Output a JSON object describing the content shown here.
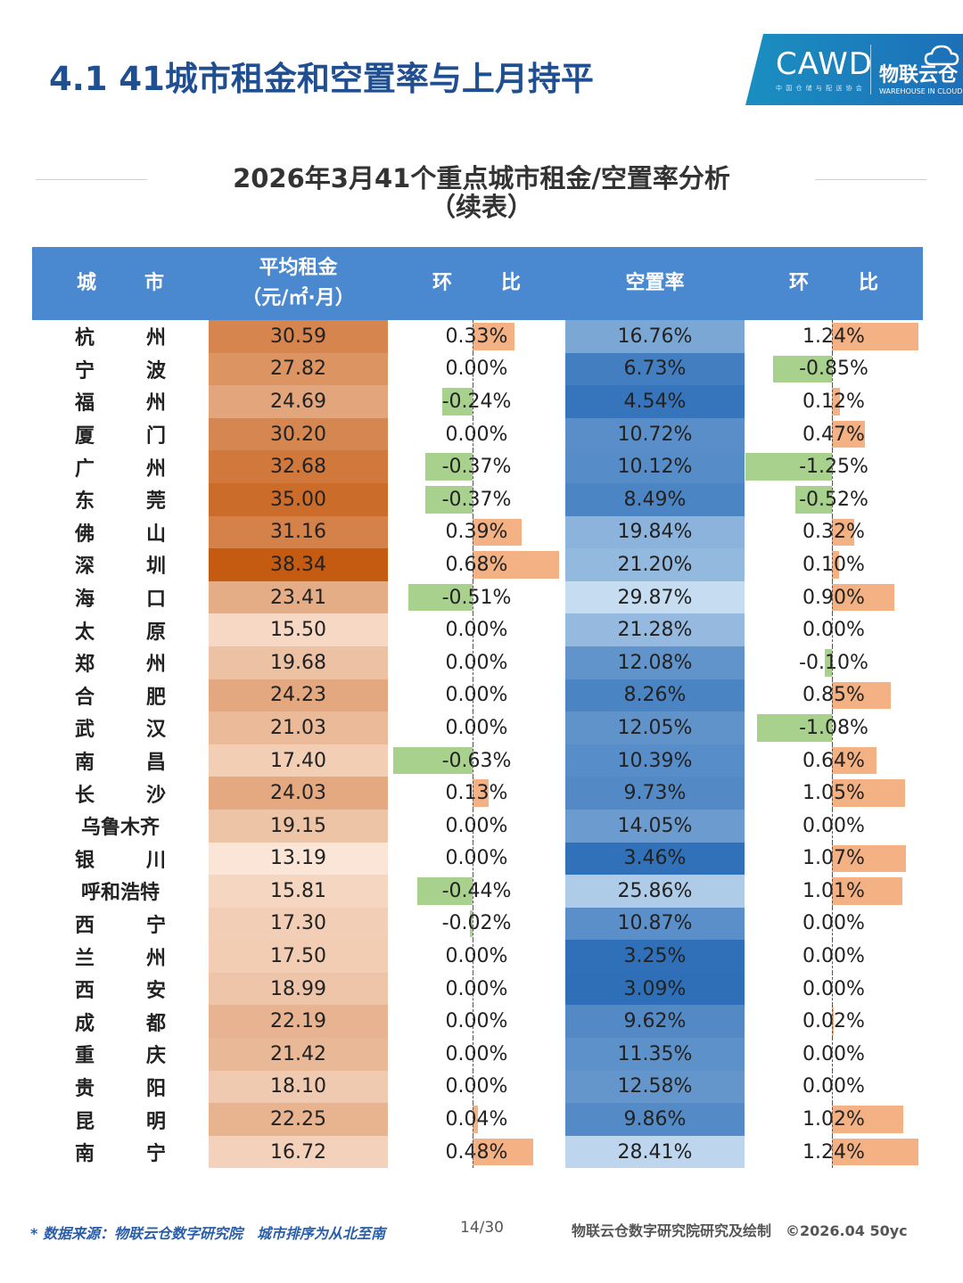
{
  "header": {
    "title": "4.1 41城市租金和空置率与上月持平",
    "logo_cawd": "CAWD",
    "logo_cawd_sub": "中 国 仓 储 与 配 送 协 会",
    "logo_wlc": "物联云仓",
    "logo_wlc_sub": "WAREHOUSE IN CLOUD"
  },
  "table_title_line1": "2026年3月41个重点城市租金/空置率分析",
  "table_title_line2": "（续表）",
  "columns": {
    "city_a": "城",
    "city_b": "市",
    "rent_line1": "平均租金",
    "rent_line2": "（元/㎡·月）",
    "mom_a": "环",
    "mom_b": "比",
    "vacancy": "空置率",
    "mom2_a": "环",
    "mom2_b": "比"
  },
  "colors": {
    "header_blue": "#4a89d0",
    "positive_bar": "#f4b183",
    "negative_bar": "#a9d18e",
    "rent_low": "#fbe5d6",
    "rent_high": "#c55a11",
    "vac_low": "#c5dcf1",
    "vac_high": "#2e6fb8"
  },
  "rows": [
    {
      "city": [
        "杭",
        "州"
      ],
      "rent": "30.59",
      "rent_mom": "0.33%",
      "vacancy": "16.76%",
      "vac_mom": "1.24%"
    },
    {
      "city": [
        "宁",
        "波"
      ],
      "rent": "27.82",
      "rent_mom": "0.00%",
      "vacancy": "6.73%",
      "vac_mom": "-0.85%"
    },
    {
      "city": [
        "福",
        "州"
      ],
      "rent": "24.69",
      "rent_mom": "-0.24%",
      "vacancy": "4.54%",
      "vac_mom": "0.12%"
    },
    {
      "city": [
        "厦",
        "门"
      ],
      "rent": "30.20",
      "rent_mom": "0.00%",
      "vacancy": "10.72%",
      "vac_mom": "0.47%"
    },
    {
      "city": [
        "广",
        "州"
      ],
      "rent": "32.68",
      "rent_mom": "-0.37%",
      "vacancy": "10.12%",
      "vac_mom": "-1.25%"
    },
    {
      "city": [
        "东",
        "莞"
      ],
      "rent": "35.00",
      "rent_mom": "-0.37%",
      "vacancy": "8.49%",
      "vac_mom": "-0.52%"
    },
    {
      "city": [
        "佛",
        "山"
      ],
      "rent": "31.16",
      "rent_mom": "0.39%",
      "vacancy": "19.84%",
      "vac_mom": "0.32%"
    },
    {
      "city": [
        "深",
        "圳"
      ],
      "rent": "38.34",
      "rent_mom": "0.68%",
      "vacancy": "21.20%",
      "vac_mom": "0.10%"
    },
    {
      "city": [
        "海",
        "口"
      ],
      "rent": "23.41",
      "rent_mom": "-0.51%",
      "vacancy": "29.87%",
      "vac_mom": "0.90%"
    },
    {
      "city": [
        "太",
        "原"
      ],
      "rent": "15.50",
      "rent_mom": "0.00%",
      "vacancy": "21.28%",
      "vac_mom": "0.00%"
    },
    {
      "city": [
        "郑",
        "州"
      ],
      "rent": "19.68",
      "rent_mom": "0.00%",
      "vacancy": "12.08%",
      "vac_mom": "-0.10%"
    },
    {
      "city": [
        "合",
        "肥"
      ],
      "rent": "24.23",
      "rent_mom": "0.00%",
      "vacancy": "8.26%",
      "vac_mom": "0.85%"
    },
    {
      "city": [
        "武",
        "汉"
      ],
      "rent": "21.03",
      "rent_mom": "0.00%",
      "vacancy": "12.05%",
      "vac_mom": "-1.08%"
    },
    {
      "city": [
        "南",
        "昌"
      ],
      "rent": "17.40",
      "rent_mom": "-0.63%",
      "vacancy": "10.39%",
      "vac_mom": "0.64%"
    },
    {
      "city": [
        "长",
        "沙"
      ],
      "rent": "24.03",
      "rent_mom": "0.13%",
      "vacancy": "9.73%",
      "vac_mom": "1.05%"
    },
    {
      "city": [
        "乌鲁木齐"
      ],
      "rent": "19.15",
      "rent_mom": "0.00%",
      "vacancy": "14.05%",
      "vac_mom": "0.00%"
    },
    {
      "city": [
        "银",
        "川"
      ],
      "rent": "13.19",
      "rent_mom": "0.00%",
      "vacancy": "3.46%",
      "vac_mom": "1.07%"
    },
    {
      "city": [
        "呼和浩特"
      ],
      "rent": "15.81",
      "rent_mom": "-0.44%",
      "vacancy": "25.86%",
      "vac_mom": "1.01%"
    },
    {
      "city": [
        "西",
        "宁"
      ],
      "rent": "17.30",
      "rent_mom": "-0.02%",
      "vacancy": "10.87%",
      "vac_mom": "0.00%"
    },
    {
      "city": [
        "兰",
        "州"
      ],
      "rent": "17.50",
      "rent_mom": "0.00%",
      "vacancy": "3.25%",
      "vac_mom": "0.00%"
    },
    {
      "city": [
        "西",
        "安"
      ],
      "rent": "18.99",
      "rent_mom": "0.00%",
      "vacancy": "3.09%",
      "vac_mom": "0.00%"
    },
    {
      "city": [
        "成",
        "都"
      ],
      "rent": "22.19",
      "rent_mom": "0.00%",
      "vacancy": "9.62%",
      "vac_mom": "0.02%"
    },
    {
      "city": [
        "重",
        "庆"
      ],
      "rent": "21.42",
      "rent_mom": "0.00%",
      "vacancy": "11.35%",
      "vac_mom": "0.00%"
    },
    {
      "city": [
        "贵",
        "阳"
      ],
      "rent": "18.10",
      "rent_mom": "0.00%",
      "vacancy": "12.58%",
      "vac_mom": "0.00%"
    },
    {
      "city": [
        "昆",
        "明"
      ],
      "rent": "22.25",
      "rent_mom": "0.04%",
      "vacancy": "9.86%",
      "vac_mom": "1.02%"
    },
    {
      "city": [
        "南",
        "宁"
      ],
      "rent": "16.72",
      "rent_mom": "0.48%",
      "vacancy": "28.41%",
      "vac_mom": "1.24%"
    }
  ],
  "footer": {
    "source": "* 数据来源：物联云仓数字研究院　城市排序为从北至南",
    "page": "14/30",
    "credit": "物联云仓数字研究院研究及绘制　©2026.04 50yc"
  }
}
